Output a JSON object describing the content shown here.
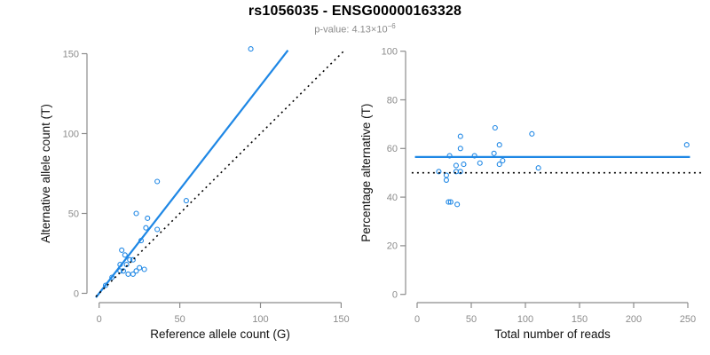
{
  "header": {
    "title": "rs1056035 - ENSG00000163328",
    "subtitle_prefix": "p-value: 4.13×10",
    "subtitle_exponent": "−6"
  },
  "colors": {
    "accent_blue": "#1E87E5",
    "axis_gray": "#8C8C8C",
    "tick_label_gray": "#8C8C8C",
    "label_black": "#111111",
    "dotted_line_black": "#000000"
  },
  "chart_data": [
    {
      "panel": "left",
      "type": "scatter",
      "title": "",
      "xlabel": "Reference allele count (G)",
      "ylabel": "Alternative allele count (T)",
      "xticks": [
        0,
        50,
        100,
        150
      ],
      "yticks": [
        0,
        50,
        100,
        150
      ],
      "xlim": [
        0,
        150
      ],
      "ylim": [
        0,
        153
      ],
      "marker": {
        "shape": "open-circle",
        "color": "#1E87E5",
        "radius": 2.5
      },
      "points": [
        [
          94,
          153
        ],
        [
          36,
          70
        ],
        [
          54,
          58
        ],
        [
          23,
          50
        ],
        [
          30,
          47
        ],
        [
          29,
          41
        ],
        [
          36,
          40
        ],
        [
          26,
          33
        ],
        [
          14,
          27
        ],
        [
          16,
          24
        ],
        [
          19,
          21
        ],
        [
          21,
          21
        ],
        [
          13,
          18
        ],
        [
          17,
          18
        ],
        [
          25,
          16
        ],
        [
          28,
          15
        ],
        [
          23,
          14
        ],
        [
          13,
          14
        ],
        [
          15,
          14
        ],
        [
          18,
          12
        ],
        [
          21,
          12
        ],
        [
          8,
          10
        ],
        [
          4,
          5
        ]
      ],
      "lines": [
        {
          "name": "regression-line",
          "style": "solid",
          "color": "#1E87E5",
          "width": 2.2,
          "from": [
            -2,
            -2.6
          ],
          "to": [
            117,
            152.1
          ],
          "slope": 1.3,
          "intercept": 0
        },
        {
          "name": "identity-line",
          "style": "dotted",
          "color": "#000000",
          "width": 1.6,
          "from": [
            -2,
            -2
          ],
          "to": [
            152,
            152
          ],
          "slope": 1,
          "intercept": 0
        }
      ],
      "grid": false,
      "legend": "none"
    },
    {
      "panel": "right",
      "type": "scatter",
      "title": "",
      "xlabel": "Total number of reads",
      "ylabel": "Percentage alternative (T)",
      "xticks": [
        0,
        50,
        100,
        150,
        200,
        250
      ],
      "yticks": [
        0,
        20,
        40,
        60,
        80,
        100
      ],
      "xlim": [
        0,
        250
      ],
      "ylim": [
        0,
        100
      ],
      "marker": {
        "shape": "open-circle",
        "color": "#1E87E5",
        "radius": 2.5
      },
      "points": [
        [
          72,
          68.5
        ],
        [
          106,
          66
        ],
        [
          40,
          65
        ],
        [
          76,
          61.5
        ],
        [
          40,
          60
        ],
        [
          30,
          57
        ],
        [
          53,
          57
        ],
        [
          71,
          58
        ],
        [
          58,
          54
        ],
        [
          36,
          53
        ],
        [
          43,
          53.5
        ],
        [
          79,
          55
        ],
        [
          76,
          53.5
        ],
        [
          20,
          50.5
        ],
        [
          36,
          50.5
        ],
        [
          40,
          50.5
        ],
        [
          112,
          52
        ],
        [
          27,
          49
        ],
        [
          27,
          47
        ],
        [
          29,
          38
        ],
        [
          31,
          38
        ],
        [
          37,
          37
        ],
        [
          249,
          61.5
        ]
      ],
      "lines": [
        {
          "name": "mean-percentage-line",
          "style": "solid",
          "color": "#1E87E5",
          "width": 2.2,
          "from": [
            -2,
            56.5
          ],
          "to": [
            252,
            56.5
          ],
          "value": 56.5
        },
        {
          "name": "null-50-percent-line",
          "style": "dotted",
          "color": "#000000",
          "width": 1.6,
          "from": [
            -5,
            50
          ],
          "to": [
            265,
            50
          ],
          "value": 50
        }
      ],
      "grid": false,
      "legend": "none"
    }
  ]
}
